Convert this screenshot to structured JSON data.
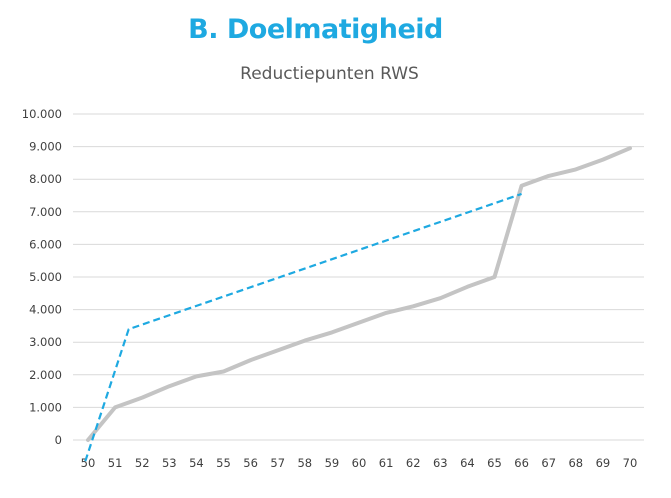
{
  "heading": "B. Doelmatigheid",
  "colors": {
    "heading": "#1ea9e1",
    "series_solid": "#c4c4c4",
    "series_dashed": "#1ea9e1",
    "grid": "#d9d9d9"
  },
  "chart_data": {
    "type": "line",
    "title": "Reductiepunten RWS",
    "xlabel": "",
    "ylabel": "",
    "categories": [
      "50",
      "51",
      "52",
      "53",
      "54",
      "55",
      "56",
      "57",
      "58",
      "59",
      "60",
      "61",
      "62",
      "63",
      "64",
      "65",
      "66",
      "67",
      "68",
      "69",
      "70"
    ],
    "x_range": [
      50,
      70
    ],
    "ylim": [
      0,
      10000
    ],
    "yticks": [
      0,
      1000,
      2000,
      3000,
      4000,
      5000,
      6000,
      7000,
      8000,
      9000,
      10000
    ],
    "ytick_labels": [
      "0",
      "1.000",
      "2.000",
      "3.000",
      "4.000",
      "5.000",
      "6.000",
      "7.000",
      "8.000",
      "9.000",
      "10.000"
    ],
    "grid": true,
    "legend": "none",
    "series": [
      {
        "style": "solid",
        "x": [
          50,
          51,
          52,
          53,
          54,
          55,
          56,
          57,
          58,
          59,
          60,
          61,
          62,
          63,
          64,
          65,
          66,
          67,
          68,
          69,
          70
        ],
        "y": [
          0,
          1000,
          1300,
          1650,
          1950,
          2100,
          2450,
          2750,
          3050,
          3300,
          3600,
          3900,
          4100,
          4350,
          4700,
          5000,
          7800,
          8100,
          8300,
          8600,
          8950
        ]
      },
      {
        "style": "dashed",
        "x": [
          49.9,
          51.5,
          66
        ],
        "y": [
          -650,
          3400,
          7550
        ]
      }
    ]
  }
}
